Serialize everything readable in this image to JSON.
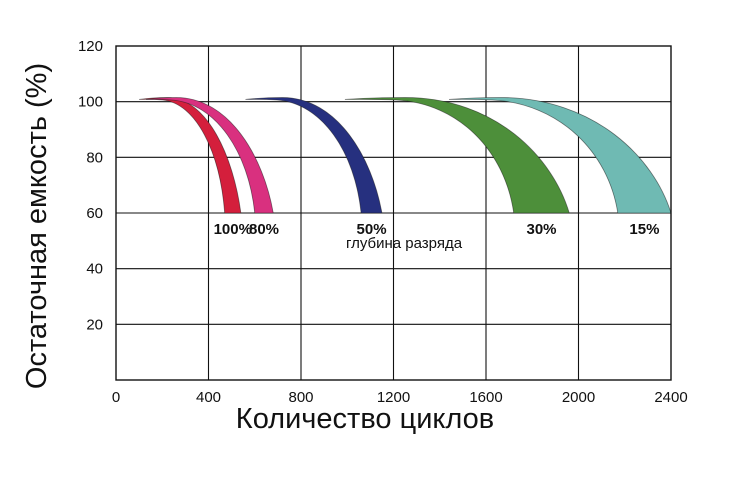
{
  "chart_data": {
    "type": "area",
    "xlabel": "Количество циклов",
    "ylabel": "Остаточная емкость (%)",
    "xlim": [
      0,
      2400
    ],
    "ylim": [
      0,
      120
    ],
    "x_ticks": [
      "0",
      "400",
      "800",
      "1200",
      "1600",
      "2000",
      "2400"
    ],
    "y_ticks": [
      "20",
      "40",
      "60",
      "80",
      "100",
      "120"
    ],
    "grid": true,
    "annotation": "глубина разряда",
    "series": [
      {
        "name": "100%",
        "color": "#d41f3c",
        "start": 100,
        "peak": 220,
        "inner_end": 470,
        "outer_end": 540
      },
      {
        "name": "80%",
        "color": "#d9307f",
        "start": 130,
        "peak": 260,
        "inner_end": 600,
        "outer_end": 680
      },
      {
        "name": "50%",
        "color": "#26307f",
        "start": 560,
        "peak": 720,
        "inner_end": 1060,
        "outer_end": 1150
      },
      {
        "name": "30%",
        "color": "#4d8f3a",
        "start": 990,
        "peak": 1250,
        "inner_end": 1720,
        "outer_end": 1960
      },
      {
        "name": "15%",
        "color": "#6fbab3",
        "start": 1440,
        "peak": 1660,
        "inner_end": 2170,
        "outer_end": 2400
      }
    ]
  }
}
